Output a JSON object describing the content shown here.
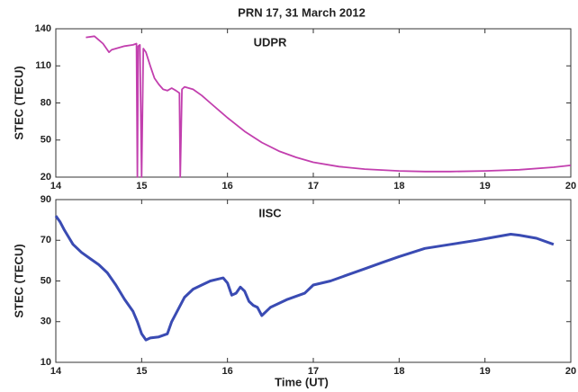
{
  "chart_data": [
    {
      "type": "line",
      "title": "PRN  17, 31 March 2012",
      "annotation": "UDPR",
      "ylabel": "STEC (TECU)",
      "xlim": [
        14,
        20
      ],
      "xticks": [
        14,
        15,
        16,
        17,
        18,
        19,
        20
      ],
      "ylim": [
        20,
        140
      ],
      "yticks": [
        20,
        50,
        80,
        110,
        140
      ],
      "series": [
        {
          "color": "#c23fae",
          "x": [
            14.35,
            14.45,
            14.5,
            14.55,
            14.62,
            14.65,
            14.7,
            14.8,
            14.9,
            14.94,
            14.95,
            14.96,
            14.98,
            15.0,
            15.02,
            15.05,
            15.1,
            15.15,
            15.2,
            15.25,
            15.3,
            15.35,
            15.4,
            15.44,
            15.45,
            15.47,
            15.5,
            15.6,
            15.7,
            15.8,
            16.0,
            16.2,
            16.4,
            16.6,
            16.8,
            17.0,
            17.3,
            17.6,
            18.0,
            18.3,
            18.6,
            19.0,
            19.4,
            19.8,
            20.0
          ],
          "values": [
            133,
            134,
            131,
            128,
            121,
            123,
            124,
            126,
            127,
            128,
            20,
            126,
            127,
            20,
            124,
            121,
            110,
            100,
            95,
            91,
            90,
            92,
            90,
            88,
            20,
            91,
            93,
            91,
            86,
            80,
            68,
            57,
            48,
            41,
            36,
            32,
            28.5,
            26.5,
            25,
            24.5,
            24.5,
            25,
            26,
            28,
            29.5
          ]
        }
      ]
    },
    {
      "type": "line",
      "annotation": "IISC",
      "ylabel": "STEC (TECU)",
      "xlabel": "Time (UT)",
      "xlim": [
        14,
        20
      ],
      "xticks": [
        14,
        15,
        16,
        17,
        18,
        19,
        20
      ],
      "ylim": [
        10,
        90
      ],
      "yticks": [
        10,
        30,
        50,
        70,
        90
      ],
      "series": [
        {
          "color": "#3a4bb3",
          "x": [
            14.0,
            14.05,
            14.1,
            14.2,
            14.3,
            14.4,
            14.5,
            14.6,
            14.7,
            14.8,
            14.9,
            14.95,
            15.0,
            15.05,
            15.1,
            15.2,
            15.3,
            15.35,
            15.4,
            15.5,
            15.6,
            15.7,
            15.8,
            15.9,
            15.95,
            16.0,
            16.05,
            16.1,
            16.15,
            16.2,
            16.25,
            16.3,
            16.35,
            16.4,
            16.45,
            16.5,
            16.7,
            16.9,
            17.0,
            17.2,
            17.4,
            17.6,
            17.8,
            18.0,
            18.3,
            18.6,
            18.9,
            19.1,
            19.3,
            19.4,
            19.6,
            19.8
          ],
          "values": [
            82,
            79,
            75,
            68,
            64,
            61,
            58,
            54,
            48,
            41,
            35,
            30,
            24,
            21,
            22,
            22.5,
            24,
            30,
            34,
            42,
            46,
            48,
            50,
            51,
            51.5,
            49,
            43,
            44,
            47,
            45,
            40,
            38,
            37,
            33,
            35,
            37,
            41,
            44,
            48,
            50,
            53,
            56,
            59,
            62,
            66,
            68,
            70,
            71.5,
            73,
            72.5,
            71,
            68
          ]
        }
      ]
    }
  ]
}
